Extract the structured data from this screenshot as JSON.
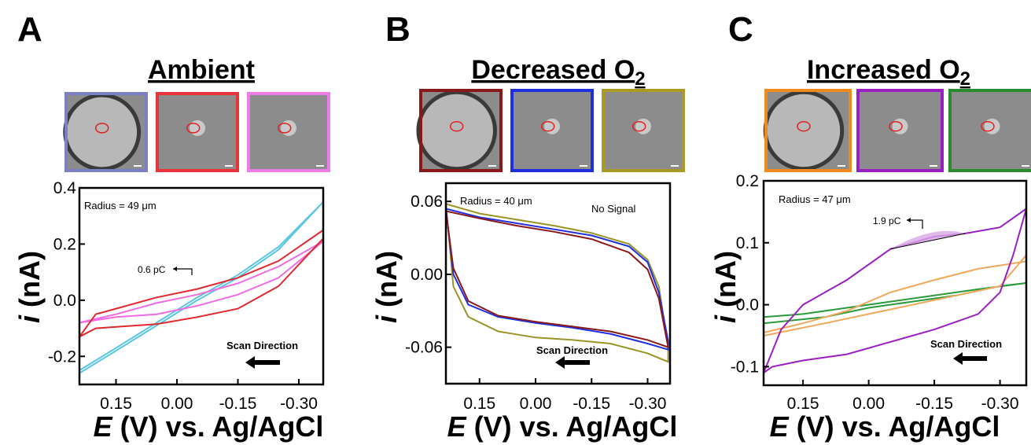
{
  "figure": {
    "xlabel_italic": "E",
    "xlabel_rest": " (V) vs. Ag/AgCl",
    "ylabel_italic": "i",
    "ylabel_rest": " (nA)",
    "scan_direction_label": "Scan Direction"
  },
  "chart_data": [
    {
      "panel_letter": "A",
      "type": "line",
      "title": "Ambient",
      "xlabel": "E (V) vs. Ag/AgCl",
      "ylabel": "i (nA)",
      "xlim": [
        0.24,
        -0.36
      ],
      "ylim": [
        -0.3,
        0.4
      ],
      "xticks": [
        0.15,
        0.0,
        -0.15,
        -0.3
      ],
      "xtick_labels": [
        "0.15",
        "0.00",
        "-0.15",
        "-0.30"
      ],
      "yticks": [
        -0.2,
        0.0,
        0.2,
        0.4
      ],
      "ytick_labels": [
        "-0.2",
        "0.0",
        "0.2",
        "0.4"
      ],
      "radius_label": "Radius = 49 μm",
      "annotation": {
        "text": "0.6 pC",
        "x": 0.1,
        "y": 0.065
      },
      "thumbnail_frame_colors": [
        "#7b7fc4",
        "#e8343a",
        "#ee7ced"
      ],
      "series": [
        {
          "color": "#5cc6e2",
          "forward": [
            [
              0.24,
              -0.26
            ],
            [
              0.15,
              -0.18
            ],
            [
              0.05,
              -0.09
            ],
            [
              -0.05,
              0.0
            ],
            [
              -0.15,
              0.08
            ],
            [
              -0.25,
              0.18
            ],
            [
              -0.36,
              0.35
            ]
          ],
          "reverse": [
            [
              -0.36,
              0.35
            ],
            [
              -0.25,
              0.19
            ],
            [
              -0.15,
              0.09
            ],
            [
              -0.05,
              0.01
            ],
            [
              0.05,
              -0.08
            ],
            [
              0.15,
              -0.17
            ],
            [
              0.24,
              -0.25
            ]
          ]
        },
        {
          "color": "#ee6ce6",
          "forward": [
            [
              0.24,
              -0.08
            ],
            [
              0.15,
              -0.06
            ],
            [
              0.05,
              -0.05
            ],
            [
              -0.05,
              -0.02
            ],
            [
              -0.15,
              0.02
            ],
            [
              -0.25,
              0.08
            ],
            [
              -0.36,
              0.21
            ]
          ],
          "reverse": [
            [
              -0.36,
              0.21
            ],
            [
              -0.25,
              0.12
            ],
            [
              -0.15,
              0.06
            ],
            [
              -0.05,
              0.02
            ],
            [
              0.05,
              -0.01
            ],
            [
              0.15,
              -0.05
            ],
            [
              0.24,
              -0.08
            ]
          ]
        },
        {
          "color": "#e0282e",
          "forward": [
            [
              0.24,
              -0.13
            ],
            [
              0.2,
              -0.1
            ],
            [
              0.15,
              -0.095
            ],
            [
              0.05,
              -0.085
            ],
            [
              -0.05,
              -0.06
            ],
            [
              -0.15,
              -0.03
            ],
            [
              -0.25,
              0.05
            ],
            [
              -0.36,
              0.22
            ]
          ],
          "reverse": [
            [
              -0.36,
              0.25
            ],
            [
              -0.25,
              0.14
            ],
            [
              -0.15,
              0.08
            ],
            [
              -0.05,
              0.04
            ],
            [
              0.05,
              0.01
            ],
            [
              0.15,
              -0.03
            ],
            [
              0.2,
              -0.05
            ],
            [
              0.24,
              -0.13
            ]
          ]
        }
      ]
    },
    {
      "panel_letter": "B",
      "type": "line",
      "title": "Decreased O",
      "title_subscript": "2",
      "xlabel": "E (V) vs. Ag/AgCl",
      "ylabel": "i (nA)",
      "xlim": [
        0.24,
        -0.36
      ],
      "ylim": [
        -0.09,
        0.075
      ],
      "xticks": [
        0.15,
        0.0,
        -0.15,
        -0.3
      ],
      "xtick_labels": [
        "0.15",
        "0.00",
        "-0.15",
        "-0.30"
      ],
      "yticks": [
        -0.06,
        0.0,
        0.06
      ],
      "ytick_labels": [
        "-0.06",
        "0.00",
        "0.06"
      ],
      "radius_label": "Radius = 40 μm",
      "status_label": "No Signal",
      "thumbnail_frame_colors": [
        "#8a1818",
        "#1f2fe0",
        "#a89a22"
      ],
      "series": [
        {
          "color": "#9a9426",
          "forward": [
            [
              0.24,
              0.058
            ],
            [
              0.15,
              0.05
            ],
            [
              0.05,
              0.045
            ],
            [
              -0.05,
              0.04
            ],
            [
              -0.15,
              0.034
            ],
            [
              -0.25,
              0.025
            ],
            [
              -0.3,
              0.012
            ],
            [
              -0.33,
              -0.01
            ],
            [
              -0.355,
              -0.06
            ]
          ],
          "reverse": [
            [
              -0.355,
              -0.072
            ],
            [
              -0.3,
              -0.065
            ],
            [
              -0.2,
              -0.057
            ],
            [
              -0.1,
              -0.054
            ],
            [
              0.0,
              -0.052
            ],
            [
              0.1,
              -0.047
            ],
            [
              0.18,
              -0.035
            ],
            [
              0.22,
              -0.01
            ],
            [
              0.24,
              0.058
            ]
          ]
        },
        {
          "color": "#1f2fe0",
          "forward": [
            [
              0.24,
              0.054
            ],
            [
              0.15,
              0.047
            ],
            [
              0.05,
              0.042
            ],
            [
              -0.05,
              0.037
            ],
            [
              -0.15,
              0.032
            ],
            [
              -0.25,
              0.023
            ],
            [
              -0.3,
              0.01
            ],
            [
              -0.33,
              -0.015
            ],
            [
              -0.355,
              -0.055
            ]
          ],
          "reverse": [
            [
              -0.355,
              -0.062
            ],
            [
              -0.3,
              -0.057
            ],
            [
              -0.2,
              -0.049
            ],
            [
              -0.1,
              -0.044
            ],
            [
              0.0,
              -0.04
            ],
            [
              0.1,
              -0.035
            ],
            [
              0.18,
              -0.025
            ],
            [
              0.22,
              0.0
            ],
            [
              0.24,
              0.054
            ]
          ]
        },
        {
          "color": "#8a1818",
          "forward": [
            [
              0.24,
              0.052
            ],
            [
              0.15,
              0.046
            ],
            [
              0.05,
              0.04
            ],
            [
              -0.05,
              0.035
            ],
            [
              -0.15,
              0.029
            ],
            [
              -0.25,
              0.018
            ],
            [
              -0.3,
              0.004
            ],
            [
              -0.33,
              -0.02
            ],
            [
              -0.355,
              -0.06
            ]
          ],
          "reverse": [
            [
              -0.355,
              -0.06
            ],
            [
              -0.3,
              -0.054
            ],
            [
              -0.2,
              -0.047
            ],
            [
              -0.1,
              -0.043
            ],
            [
              0.0,
              -0.039
            ],
            [
              0.1,
              -0.034
            ],
            [
              0.18,
              -0.022
            ],
            [
              0.22,
              0.005
            ],
            [
              0.24,
              0.052
            ]
          ]
        }
      ]
    },
    {
      "panel_letter": "C",
      "type": "line",
      "title": "Increased O",
      "title_subscript": "2",
      "xlabel": "E (V) vs. Ag/AgCl",
      "ylabel": "i (nA)",
      "xlim": [
        0.24,
        -0.36
      ],
      "ylim": [
        -0.13,
        0.2
      ],
      "xticks": [
        0.15,
        0.0,
        -0.15,
        -0.3
      ],
      "xtick_labels": [
        "0.15",
        "0.00",
        "-0.15",
        "-0.30"
      ],
      "yticks": [
        -0.1,
        0.0,
        0.1,
        0.2
      ],
      "ytick_labels": [
        "-0.1",
        "0.0",
        "0.1",
        "0.2"
      ],
      "radius_label": "Radius = 47 μm",
      "annotation": {
        "text": "1.9 pC",
        "x": -0.15,
        "y": 0.14
      },
      "thumbnail_frame_colors": [
        "#f08a1c",
        "#9a1fc0",
        "#2a8a2e"
      ],
      "series": [
        {
          "color": "#2a9a3a",
          "forward": [
            [
              0.24,
              -0.03
            ],
            [
              0.1,
              -0.02
            ],
            [
              0.0,
              -0.005
            ],
            [
              -0.1,
              0.005
            ],
            [
              -0.2,
              0.015
            ],
            [
              -0.3,
              0.03
            ],
            [
              -0.36,
              0.035
            ]
          ],
          "reverse": [
            [
              -0.36,
              0.035
            ],
            [
              -0.25,
              0.025
            ],
            [
              -0.15,
              0.015
            ],
            [
              -0.05,
              0.005
            ],
            [
              0.05,
              -0.005
            ],
            [
              0.15,
              -0.015
            ],
            [
              0.24,
              -0.02
            ]
          ]
        },
        {
          "color": "#f0a85a",
          "forward": [
            [
              0.24,
              -0.05
            ],
            [
              0.1,
              -0.03
            ],
            [
              0.0,
              -0.015
            ],
            [
              -0.1,
              0.0
            ],
            [
              -0.2,
              0.015
            ],
            [
              -0.3,
              0.03
            ],
            [
              -0.36,
              0.08
            ]
          ],
          "reverse": [
            [
              -0.36,
              0.07
            ],
            [
              -0.25,
              0.058
            ],
            [
              -0.15,
              0.04
            ],
            [
              -0.05,
              0.02
            ],
            [
              0.05,
              -0.01
            ],
            [
              0.15,
              -0.03
            ],
            [
              0.24,
              -0.045
            ]
          ]
        },
        {
          "color": "#9a1fc0",
          "forward": [
            [
              0.24,
              -0.11
            ],
            [
              0.22,
              -0.1
            ],
            [
              0.15,
              -0.09
            ],
            [
              0.05,
              -0.08
            ],
            [
              -0.05,
              -0.06
            ],
            [
              -0.15,
              -0.04
            ],
            [
              -0.25,
              -0.015
            ],
            [
              -0.3,
              0.02
            ],
            [
              -0.33,
              0.08
            ],
            [
              -0.36,
              0.155
            ]
          ],
          "reverse": [
            [
              -0.36,
              0.155
            ],
            [
              -0.3,
              0.125
            ],
            [
              -0.22,
              0.115
            ],
            [
              -0.15,
              0.11
            ],
            [
              -0.05,
              0.09
            ],
            [
              0.05,
              0.04
            ],
            [
              0.15,
              0.0
            ],
            [
              0.2,
              -0.04
            ],
            [
              0.24,
              -0.11
            ]
          ]
        }
      ]
    }
  ]
}
